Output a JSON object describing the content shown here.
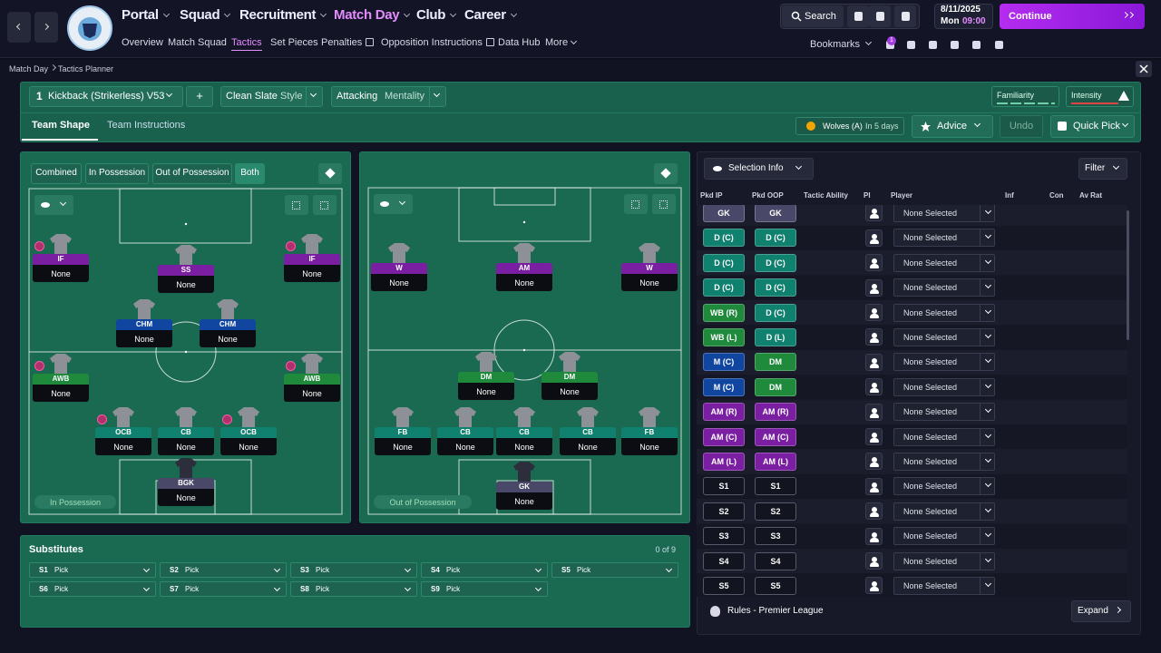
{
  "header": {
    "nav": [
      "Portal",
      "Squad",
      "Recruitment",
      "Match Day",
      "Club",
      "Career"
    ],
    "subnav": [
      "Overview",
      "Match Squad",
      "Tactics",
      "Set Pieces",
      "Penalties",
      "Opposition Instructions",
      "Data Hub",
      "More"
    ],
    "search": "Search",
    "date": "8/11/2025",
    "day": "Mon",
    "time": "09:00",
    "continue": "Continue",
    "bookmarks": "Bookmarks",
    "notifications": 1
  },
  "breadcrumb": [
    "Match Day",
    "Tactics Planner"
  ],
  "tactic": {
    "slot": 1,
    "name": "Kickback (Strikerless) V53",
    "add_button": "+",
    "style": "Clean Slate",
    "style_label": "Style",
    "mentality": "Attacking",
    "mentality_label": "Mentality",
    "familiarity_label": "Familiarity",
    "intensity_label": "Intensity"
  },
  "tabs": [
    "Team Shape",
    "Team Instructions"
  ],
  "fixture": {
    "opponent": "Wolves (A)",
    "when": "In 5 days"
  },
  "buttons": {
    "advice": "Advice",
    "undo": "Undo",
    "quick_pick": "Quick Pick"
  },
  "view_modes": [
    "Combined",
    "In Possession",
    "Out of Possession",
    "Both"
  ],
  "pitches": [
    {
      "label": "In Possession",
      "players": [
        {
          "role": "IF",
          "player": "None",
          "color": "#7b1fa2"
        },
        {
          "role": "SS",
          "player": "None",
          "color": "#7b1fa2"
        },
        {
          "role": "IF",
          "player": "None",
          "color": "#7b1fa2"
        },
        {
          "role": "CHM",
          "player": "None",
          "color": "#1046a0"
        },
        {
          "role": "CHM",
          "player": "None",
          "color": "#1046a0"
        },
        {
          "role": "AWB",
          "player": "None",
          "color": "#1f8a3c"
        },
        {
          "role": "AWB",
          "player": "None",
          "color": "#1f8a3c"
        },
        {
          "role": "OCB",
          "player": "None",
          "color": "#10806f"
        },
        {
          "role": "CB",
          "player": "None",
          "color": "#10806f"
        },
        {
          "role": "OCB",
          "player": "None",
          "color": "#10806f"
        },
        {
          "role": "BGK",
          "player": "None",
          "color": "#4a4868"
        }
      ]
    },
    {
      "label": "Out of Possession",
      "players": [
        {
          "role": "W",
          "player": "None",
          "color": "#7b1fa2"
        },
        {
          "role": "AM",
          "player": "None",
          "color": "#7b1fa2"
        },
        {
          "role": "W",
          "player": "None",
          "color": "#7b1fa2"
        },
        {
          "role": "DM",
          "player": "None",
          "color": "#1f8a3c"
        },
        {
          "role": "DM",
          "player": "None",
          "color": "#1f8a3c"
        },
        {
          "role": "FB",
          "player": "None",
          "color": "#10806f"
        },
        {
          "role": "CB",
          "player": "None",
          "color": "#10806f"
        },
        {
          "role": "CB",
          "player": "None",
          "color": "#10806f"
        },
        {
          "role": "CB",
          "player": "None",
          "color": "#10806f"
        },
        {
          "role": "FB",
          "player": "None",
          "color": "#10806f"
        },
        {
          "role": "GK",
          "player": "None",
          "color": "#4a4868"
        }
      ]
    }
  ],
  "substitutes": {
    "title": "Substitutes",
    "count": "0 of 9",
    "slots": [
      {
        "slot": "S1",
        "pick": "Pick"
      },
      {
        "slot": "S2",
        "pick": "Pick"
      },
      {
        "slot": "S3",
        "pick": "Pick"
      },
      {
        "slot": "S4",
        "pick": "Pick"
      },
      {
        "slot": "S5",
        "pick": "Pick"
      },
      {
        "slot": "S6",
        "pick": "Pick"
      },
      {
        "slot": "S7",
        "pick": "Pick"
      },
      {
        "slot": "S8",
        "pick": "Pick"
      },
      {
        "slot": "S9",
        "pick": "Pick"
      }
    ]
  },
  "selection": {
    "dropdown": "Selection Info",
    "filter": "Filter",
    "columns": [
      "Pkd IP",
      "Pkd OOP",
      "Tactic Ability",
      "PI",
      "Player",
      "Inf",
      "Con",
      "Av Rat"
    ],
    "rows": [
      {
        "ip": "GK",
        "ip_color": "#4a4868",
        "oop": "GK",
        "oop_color": "#4a4868",
        "player": "None Selected"
      },
      {
        "ip": "D (C)",
        "ip_color": "#10806f",
        "oop": "D (C)",
        "oop_color": "#10806f",
        "player": "None Selected"
      },
      {
        "ip": "D (C)",
        "ip_color": "#10806f",
        "oop": "D (C)",
        "oop_color": "#10806f",
        "player": "None Selected"
      },
      {
        "ip": "D (C)",
        "ip_color": "#10806f",
        "oop": "D (C)",
        "oop_color": "#10806f",
        "player": "None Selected"
      },
      {
        "ip": "WB (R)",
        "ip_color": "#1f8a3c",
        "oop": "D (C)",
        "oop_color": "#10806f",
        "player": "None Selected"
      },
      {
        "ip": "WB (L)",
        "ip_color": "#1f8a3c",
        "oop": "D (L)",
        "oop_color": "#10806f",
        "player": "None Selected"
      },
      {
        "ip": "M (C)",
        "ip_color": "#1046a0",
        "oop": "DM",
        "oop_color": "#1f8a3c",
        "player": "None Selected"
      },
      {
        "ip": "M (C)",
        "ip_color": "#1046a0",
        "oop": "DM",
        "oop_color": "#1f8a3c",
        "player": "None Selected"
      },
      {
        "ip": "AM (R)",
        "ip_color": "#7b1fa2",
        "oop": "AM (R)",
        "oop_color": "#7b1fa2",
        "player": "None Selected"
      },
      {
        "ip": "AM (C)",
        "ip_color": "#7b1fa2",
        "oop": "AM (C)",
        "oop_color": "#7b1fa2",
        "player": "None Selected"
      },
      {
        "ip": "AM (L)",
        "ip_color": "#7b1fa2",
        "oop": "AM (L)",
        "oop_color": "#7b1fa2",
        "player": "None Selected"
      },
      {
        "ip": "S1",
        "ip_color": "#12141f",
        "oop": "S1",
        "oop_color": "#12141f",
        "player": "None Selected"
      },
      {
        "ip": "S2",
        "ip_color": "#12141f",
        "oop": "S2",
        "oop_color": "#12141f",
        "player": "None Selected"
      },
      {
        "ip": "S3",
        "ip_color": "#12141f",
        "oop": "S3",
        "oop_color": "#12141f",
        "player": "None Selected"
      },
      {
        "ip": "S4",
        "ip_color": "#12141f",
        "oop": "S4",
        "oop_color": "#12141f",
        "player": "None Selected"
      },
      {
        "ip": "S5",
        "ip_color": "#12141f",
        "oop": "S5",
        "oop_color": "#12141f",
        "player": "None Selected"
      }
    ],
    "rules": "Rules - Premier League",
    "expand": "Expand"
  }
}
